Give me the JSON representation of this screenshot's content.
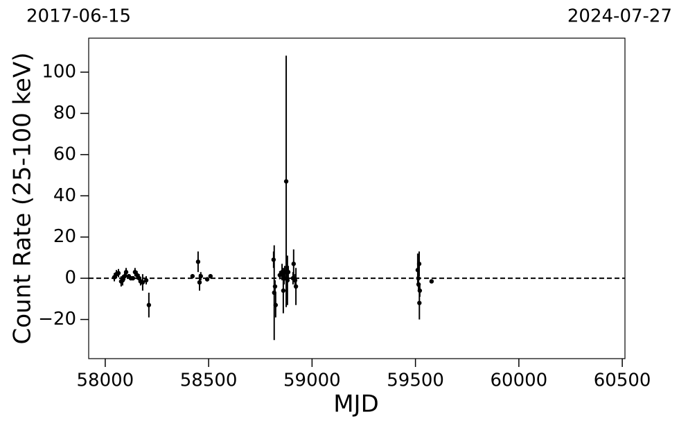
{
  "chart_data": {
    "type": "errorbar",
    "xlabel": "MJD",
    "ylabel": "Count Rate (25-100 keV)",
    "annotations": [
      "2017-06-15",
      "2024-07-27"
    ],
    "color": "#000000",
    "reference_line": 0,
    "xlim": [
      57920,
      60513
    ],
    "ylim": [
      -39,
      116.5
    ],
    "xticks": [
      58000,
      58500,
      59000,
      59500,
      60000,
      60500
    ],
    "yticks": [
      {
        "value": -20,
        "label": "−20"
      },
      0,
      20,
      40,
      60,
      80,
      100
    ],
    "x": [
      58044,
      58054,
      58064,
      58077,
      58084,
      58094,
      58101,
      58114,
      58124,
      58134,
      58144,
      58154,
      58164,
      58171,
      58181,
      58198,
      58211,
      58422,
      58449,
      58456,
      58462,
      58493,
      58509,
      58814,
      58817,
      58821,
      58824,
      58844,
      58855,
      58861,
      58865,
      58868,
      58875,
      58878,
      58881,
      58885,
      58908,
      58911,
      58918,
      58922,
      59511,
      59514,
      59515,
      59518,
      59519,
      59521,
      59578
    ],
    "values": [
      0.5,
      2,
      2.5,
      -1.5,
      -1,
      1,
      3,
      1,
      0,
      0,
      3,
      1.5,
      0,
      -1.5,
      -2,
      -1,
      -13,
      1,
      8,
      -2,
      1,
      -0.5,
      1,
      9,
      -7,
      -4,
      -13,
      1.5,
      3,
      -6,
      0,
      3,
      47,
      3,
      -1,
      3,
      0,
      7,
      -1,
      -4,
      4,
      0,
      -3,
      7,
      -12,
      -6,
      -1.5
    ],
    "errors": [
      2,
      2,
      2,
      2.5,
      2.5,
      2,
      2,
      1,
      1,
      1,
      2,
      2,
      2,
      2,
      4,
      2,
      6,
      1,
      5,
      4,
      2,
      1,
      1,
      4,
      23,
      3,
      6,
      2,
      4,
      11,
      3,
      3,
      61,
      3,
      12,
      3,
      3,
      7,
      3,
      9,
      8,
      3,
      3,
      6,
      8,
      3,
      0.8
    ]
  }
}
